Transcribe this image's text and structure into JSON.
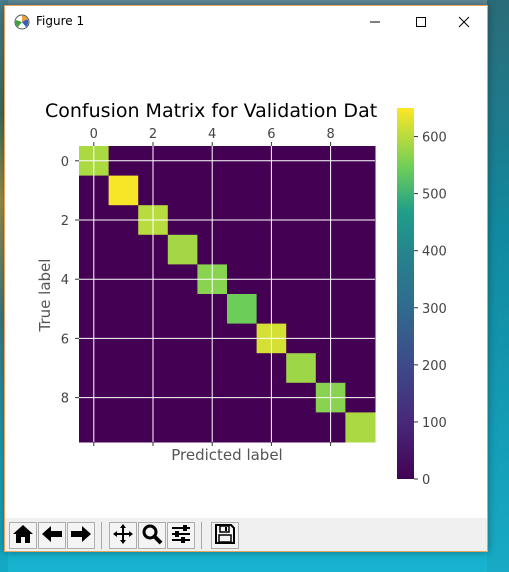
{
  "window": {
    "title": "Figure 1",
    "border_color": "#e8a45c"
  },
  "icons": {
    "app": "matplotlib-figure-icon",
    "minimize": "minimize-icon",
    "maximize": "maximize-icon",
    "close": "close-icon"
  },
  "toolbar": {
    "buttons": [
      {
        "name": "home-icon"
      },
      {
        "name": "back-arrow-icon"
      },
      {
        "name": "forward-arrow-icon"
      },
      {
        "name": "pan-icon"
      },
      {
        "name": "zoom-icon"
      },
      {
        "name": "subplots-config-icon"
      },
      {
        "name": "save-icon"
      }
    ]
  },
  "chart_data": {
    "type": "heatmap",
    "title": "Confusion Matrix for Validation Dat",
    "xlabel": "Predicted label",
    "ylabel": "True label",
    "x_ticks": [
      "0",
      "2",
      "4",
      "6",
      "8"
    ],
    "y_ticks": [
      "0",
      "2",
      "4",
      "6",
      "8"
    ],
    "colormap": "viridis",
    "colorbar_ticks": [
      "0",
      "100",
      "200",
      "300",
      "400",
      "500",
      "600"
    ],
    "colorbar_range": [
      0,
      650
    ],
    "grid": true,
    "matrix": [
      [
        590,
        0,
        0,
        0,
        0,
        0,
        0,
        0,
        0,
        0
      ],
      [
        0,
        645,
        0,
        0,
        0,
        0,
        0,
        0,
        0,
        0
      ],
      [
        0,
        0,
        600,
        0,
        0,
        0,
        0,
        0,
        0,
        0
      ],
      [
        0,
        0,
        0,
        585,
        0,
        0,
        0,
        0,
        0,
        0
      ],
      [
        0,
        0,
        0,
        0,
        565,
        0,
        0,
        0,
        0,
        0
      ],
      [
        0,
        0,
        0,
        0,
        0,
        545,
        0,
        0,
        0,
        0
      ],
      [
        0,
        0,
        0,
        0,
        0,
        0,
        620,
        0,
        0,
        0
      ],
      [
        0,
        0,
        0,
        0,
        0,
        0,
        0,
        580,
        0,
        0
      ],
      [
        0,
        0,
        0,
        0,
        0,
        0,
        0,
        0,
        565,
        0
      ],
      [
        0,
        0,
        0,
        0,
        0,
        0,
        0,
        0,
        0,
        590
      ]
    ]
  }
}
